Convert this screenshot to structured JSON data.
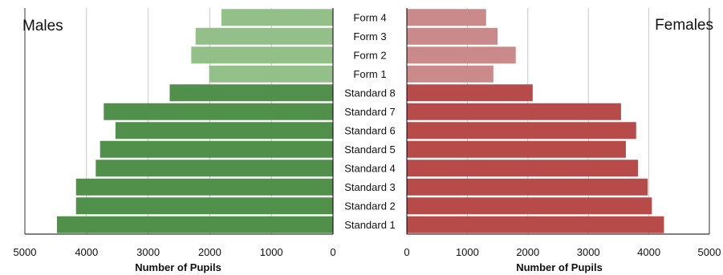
{
  "chart_data": {
    "type": "bar",
    "categories": [
      "Form 4",
      "Form 3",
      "Form 2",
      "Form 1",
      "Standard 8",
      "Standard 7",
      "Standard 6",
      "Standard 5",
      "Standard 4",
      "Standard 3",
      "Standard 2",
      "Standard 1"
    ],
    "series": [
      {
        "name": "Males",
        "values": [
          1810,
          2230,
          2300,
          2010,
          2650,
          3720,
          3530,
          3780,
          3850,
          4170,
          4170,
          4480
        ],
        "color_light": "#93bf88",
        "color_dark": "#50904a"
      },
      {
        "name": "Females",
        "values": [
          1310,
          1500,
          1800,
          1430,
          2080,
          3540,
          3790,
          3620,
          3820,
          3980,
          4050,
          4250
        ],
        "color_light": "#c98a89",
        "color_dark": "#b64b4a"
      }
    ],
    "light_categories": [
      "Form 4",
      "Form 3",
      "Form 2",
      "Form 1"
    ],
    "left_panel": {
      "title": "Males",
      "xlabel": "Number of Pupils",
      "xlim": [
        5000,
        0
      ],
      "ticks": [
        "5000",
        "4000",
        "3000",
        "2000",
        "1000",
        "0"
      ]
    },
    "right_panel": {
      "title": "Females",
      "xlabel": "Number of Pupils",
      "xlim": [
        0,
        5000
      ],
      "ticks": [
        "0",
        "1000",
        "2000",
        "3000",
        "4000",
        "5000"
      ]
    },
    "grid": true,
    "gridline_color": "#c8c8c8"
  }
}
